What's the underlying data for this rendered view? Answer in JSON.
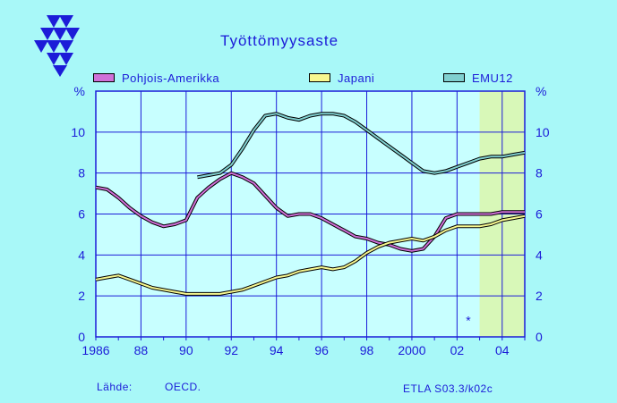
{
  "title": "Työttömyysaste",
  "source_label": "Lähde:",
  "source_value": "OECD.",
  "code": "ETLA S03.3/k02c",
  "colors": {
    "pohjois_amerikka": "#d070d8",
    "japani": "#f8f890",
    "emu12": "#80d0d0",
    "forecast_area": "#d8f8b8",
    "plot_bg": "#c8ffff",
    "grid": "#1c1cd8"
  },
  "legend": [
    {
      "label": "Pohjois-Amerikka",
      "color": "#d070d8"
    },
    {
      "label": "Japani",
      "color": "#f8f890"
    },
    {
      "label": "EMU12",
      "color": "#80d0d0"
    }
  ],
  "chart_data": {
    "type": "line",
    "xlim": [
      1986,
      2005
    ],
    "ylim": [
      0,
      12
    ],
    "x_ticks": [
      "1986",
      "88",
      "90",
      "92",
      "94",
      "96",
      "98",
      "2000",
      "02",
      "04"
    ],
    "y_ticks": [
      "0",
      "2",
      "4",
      "6",
      "8",
      "10"
    ],
    "y_unit_left": "%",
    "y_unit_right": "%",
    "forecast_start": 2003,
    "forecast_marker": "*",
    "series": [
      {
        "name": "Pohjois-Amerikka",
        "x": [
          1986.0,
          1986.5,
          1987.0,
          1987.5,
          1988.0,
          1988.5,
          1989.0,
          1989.5,
          1990.0,
          1990.5,
          1991.0,
          1991.5,
          1992.0,
          1992.5,
          1993.0,
          1993.5,
          1994.0,
          1994.5,
          1995.0,
          1995.5,
          1996.0,
          1996.5,
          1997.0,
          1997.5,
          1998.0,
          1998.5,
          1999.0,
          1999.5,
          2000.0,
          2000.5,
          2001.0,
          2001.5,
          2002.0,
          2002.5,
          2003.0,
          2003.5,
          2004.0,
          2004.5,
          2005.0
        ],
        "values": [
          7.3,
          7.2,
          6.8,
          6.3,
          5.9,
          5.6,
          5.4,
          5.5,
          5.7,
          6.8,
          7.3,
          7.7,
          8.0,
          7.8,
          7.5,
          6.9,
          6.3,
          5.9,
          6.0,
          6.0,
          5.8,
          5.5,
          5.2,
          4.9,
          4.8,
          4.6,
          4.5,
          4.3,
          4.2,
          4.3,
          4.9,
          5.8,
          6.0,
          6.0,
          6.0,
          6.0,
          6.1,
          6.1,
          6.1
        ]
      },
      {
        "name": "Japani",
        "x": [
          1986.0,
          1986.5,
          1987.0,
          1987.5,
          1988.0,
          1988.5,
          1989.0,
          1989.5,
          1990.0,
          1990.5,
          1991.0,
          1991.5,
          1992.0,
          1992.5,
          1993.0,
          1993.5,
          1994.0,
          1994.5,
          1995.0,
          1995.5,
          1996.0,
          1996.5,
          1997.0,
          1997.5,
          1998.0,
          1998.5,
          1999.0,
          1999.5,
          2000.0,
          2000.5,
          2001.0,
          2001.5,
          2002.0,
          2002.5,
          2003.0,
          2003.5,
          2004.0,
          2004.5,
          2005.0
        ],
        "values": [
          2.8,
          2.9,
          3.0,
          2.8,
          2.6,
          2.4,
          2.3,
          2.2,
          2.1,
          2.1,
          2.1,
          2.1,
          2.2,
          2.3,
          2.5,
          2.7,
          2.9,
          3.0,
          3.2,
          3.3,
          3.4,
          3.3,
          3.4,
          3.7,
          4.1,
          4.4,
          4.6,
          4.7,
          4.8,
          4.7,
          4.9,
          5.2,
          5.4,
          5.4,
          5.4,
          5.5,
          5.7,
          5.8,
          5.9
        ]
      },
      {
        "name": "EMU12",
        "x": [
          1990.5,
          1991.0,
          1991.5,
          1992.0,
          1992.5,
          1993.0,
          1993.5,
          1994.0,
          1994.5,
          1995.0,
          1995.5,
          1996.0,
          1996.5,
          1997.0,
          1997.5,
          1998.0,
          1998.5,
          1999.0,
          1999.5,
          2000.0,
          2000.5,
          2001.0,
          2001.5,
          2002.0,
          2002.5,
          2003.0,
          2003.5,
          2004.0,
          2004.5,
          2005.0
        ],
        "values": [
          7.8,
          7.9,
          8.0,
          8.4,
          9.2,
          10.1,
          10.8,
          10.9,
          10.7,
          10.6,
          10.8,
          10.9,
          10.9,
          10.8,
          10.5,
          10.1,
          9.7,
          9.3,
          8.9,
          8.5,
          8.1,
          8.0,
          8.1,
          8.3,
          8.5,
          8.7,
          8.8,
          8.8,
          8.9,
          9.0
        ]
      }
    ]
  }
}
